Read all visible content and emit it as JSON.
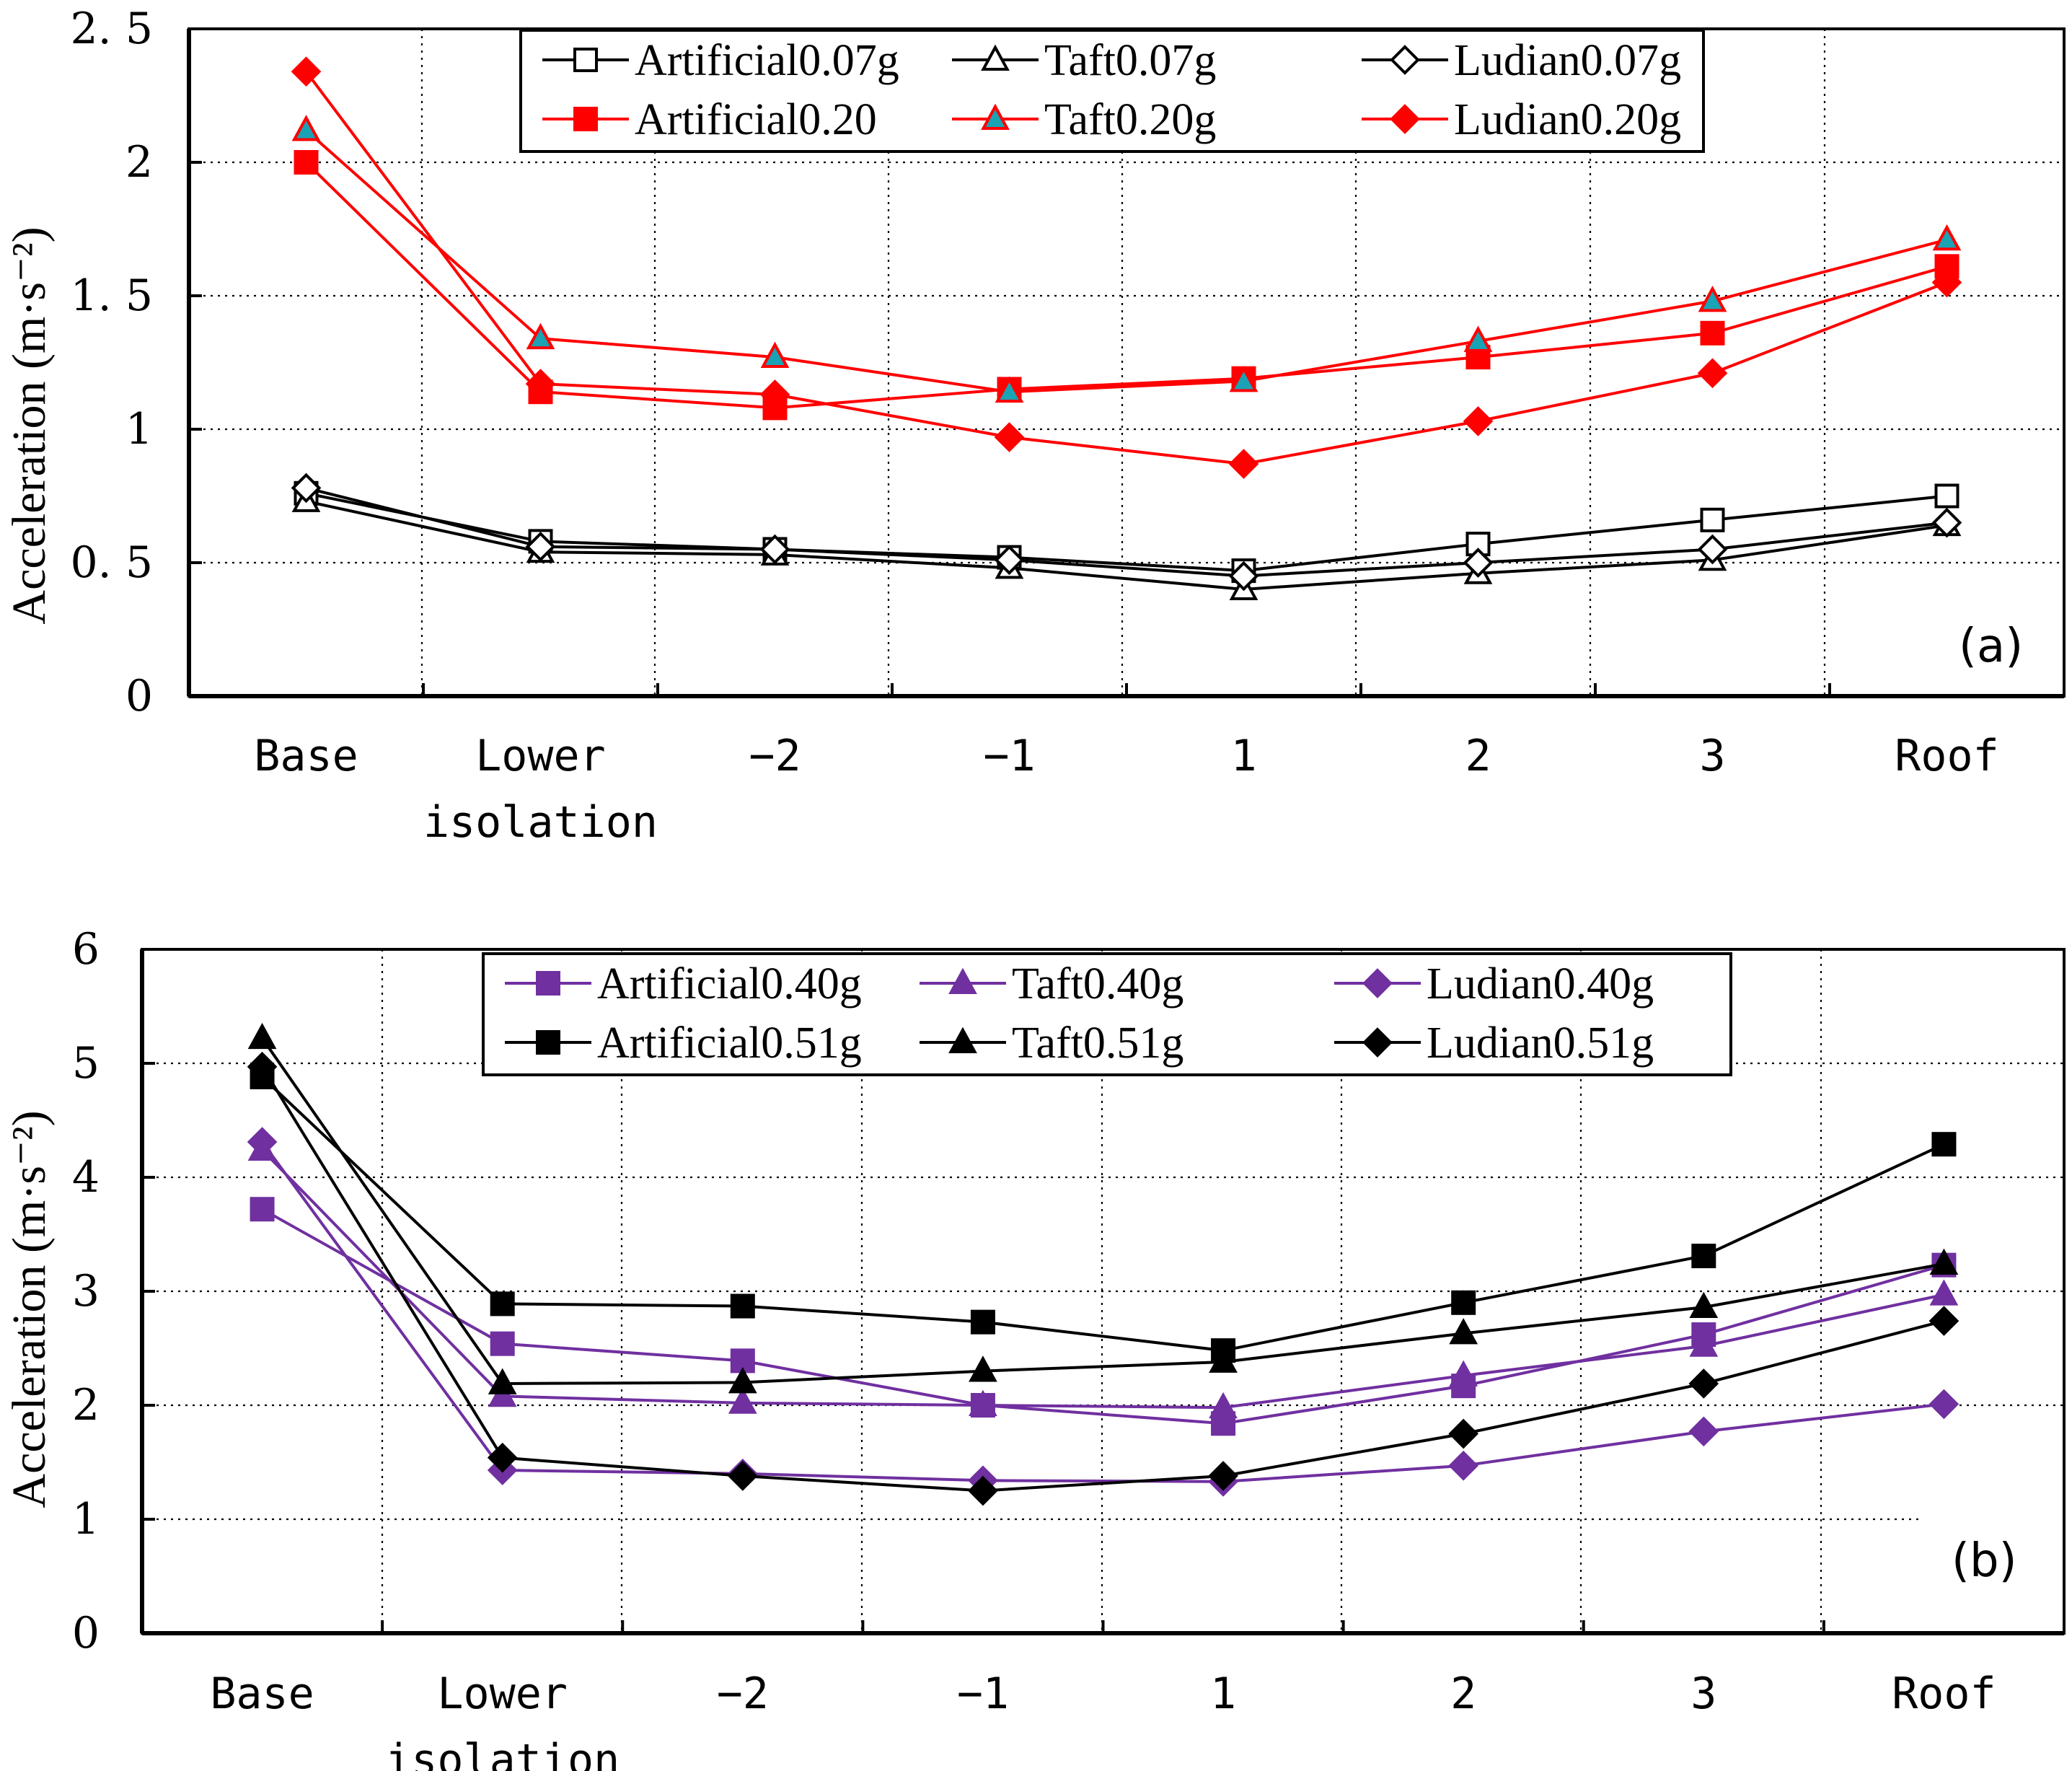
{
  "chart_data": [
    {
      "type": "line",
      "panel_label": "(a)",
      "ylabel": "Acceleration (m·s⁻²)",
      "ylim": [
        0,
        2.5
      ],
      "yticks": [
        0,
        0.5,
        1,
        1.5,
        2,
        2.5
      ],
      "ytick_labels": [
        "0",
        "0. 5",
        "1",
        "1. 5",
        "2",
        "2. 5"
      ],
      "categories": [
        "Base",
        "Lower isolation",
        "−2",
        "−1",
        "1",
        "2",
        "3",
        "Roof"
      ],
      "grid": true,
      "legend": "top",
      "series": [
        {
          "name": "Artificial0.07g",
          "color": "#000000",
          "marker": "square",
          "filled": false,
          "values": [
            0.76,
            0.58,
            0.55,
            0.52,
            0.47,
            0.57,
            0.66,
            0.75
          ]
        },
        {
          "name": "Taft0.07g",
          "color": "#000000",
          "marker": "triangle",
          "filled": false,
          "values": [
            0.73,
            0.54,
            0.53,
            0.48,
            0.4,
            0.46,
            0.51,
            0.64
          ]
        },
        {
          "name": "Ludian0.07g",
          "color": "#000000",
          "marker": "diamond",
          "filled": false,
          "values": [
            0.78,
            0.56,
            0.55,
            0.51,
            0.45,
            0.5,
            0.55,
            0.65
          ]
        },
        {
          "name": "Artificial0.20",
          "color": "#ff0000",
          "marker": "square",
          "filled": true,
          "fill": "#ff0000",
          "values": [
            2.0,
            1.14,
            1.08,
            1.15,
            1.19,
            1.27,
            1.36,
            1.61
          ]
        },
        {
          "name": "Taft0.20g",
          "color": "#ff0000",
          "marker": "triangle",
          "filled": true,
          "fill": "#1aa3b4",
          "values": [
            2.12,
            1.34,
            1.27,
            1.14,
            1.18,
            1.33,
            1.48,
            1.71
          ]
        },
        {
          "name": "Ludian0.20g",
          "color": "#ff0000",
          "marker": "diamond",
          "filled": true,
          "fill": "#ff0000",
          "values": [
            2.34,
            1.17,
            1.13,
            0.97,
            0.87,
            1.03,
            1.21,
            1.55
          ]
        }
      ]
    },
    {
      "type": "line",
      "panel_label": "(b)",
      "ylabel": "Acceleration (m·s⁻²)",
      "ylim": [
        0,
        6
      ],
      "yticks": [
        0,
        1,
        2,
        3,
        4,
        5,
        6
      ],
      "ytick_labels": [
        "0",
        "1",
        "2",
        "3",
        "4",
        "5",
        "6"
      ],
      "categories": [
        "Base",
        "Lower isolation",
        "−2",
        "−1",
        "1",
        "2",
        "3",
        "Roof"
      ],
      "grid": true,
      "legend": "top",
      "series": [
        {
          "name": "Artificial0.40g",
          "color": "#7030a0",
          "marker": "square",
          "filled": true,
          "fill": "#7030a0",
          "values": [
            3.72,
            2.54,
            2.39,
            2.0,
            1.84,
            2.17,
            2.62,
            3.23
          ]
        },
        {
          "name": "Taft0.40g",
          "color": "#7030a0",
          "marker": "triangle",
          "filled": true,
          "fill": "#7030a0",
          "values": [
            4.24,
            2.08,
            2.02,
            2.0,
            1.98,
            2.26,
            2.52,
            2.97
          ]
        },
        {
          "name": "Ludian0.40g",
          "color": "#7030a0",
          "marker": "diamond",
          "filled": true,
          "fill": "#7030a0",
          "values": [
            4.31,
            1.43,
            1.4,
            1.34,
            1.33,
            1.47,
            1.77,
            2.01
          ]
        },
        {
          "name": "Artificial0.51g",
          "color": "#000000",
          "marker": "square",
          "filled": true,
          "fill": "#000000",
          "values": [
            4.88,
            2.89,
            2.87,
            2.73,
            2.48,
            2.9,
            3.31,
            4.29
          ]
        },
        {
          "name": "Taft0.51g",
          "color": "#000000",
          "marker": "triangle",
          "filled": true,
          "fill": "#000000",
          "values": [
            5.22,
            2.19,
            2.2,
            2.3,
            2.38,
            2.63,
            2.86,
            3.24
          ]
        },
        {
          "name": "Ludian0.51g",
          "color": "#000000",
          "marker": "diamond",
          "filled": true,
          "fill": "#000000",
          "values": [
            4.97,
            1.54,
            1.38,
            1.25,
            1.38,
            1.75,
            2.19,
            2.74
          ]
        }
      ]
    }
  ]
}
